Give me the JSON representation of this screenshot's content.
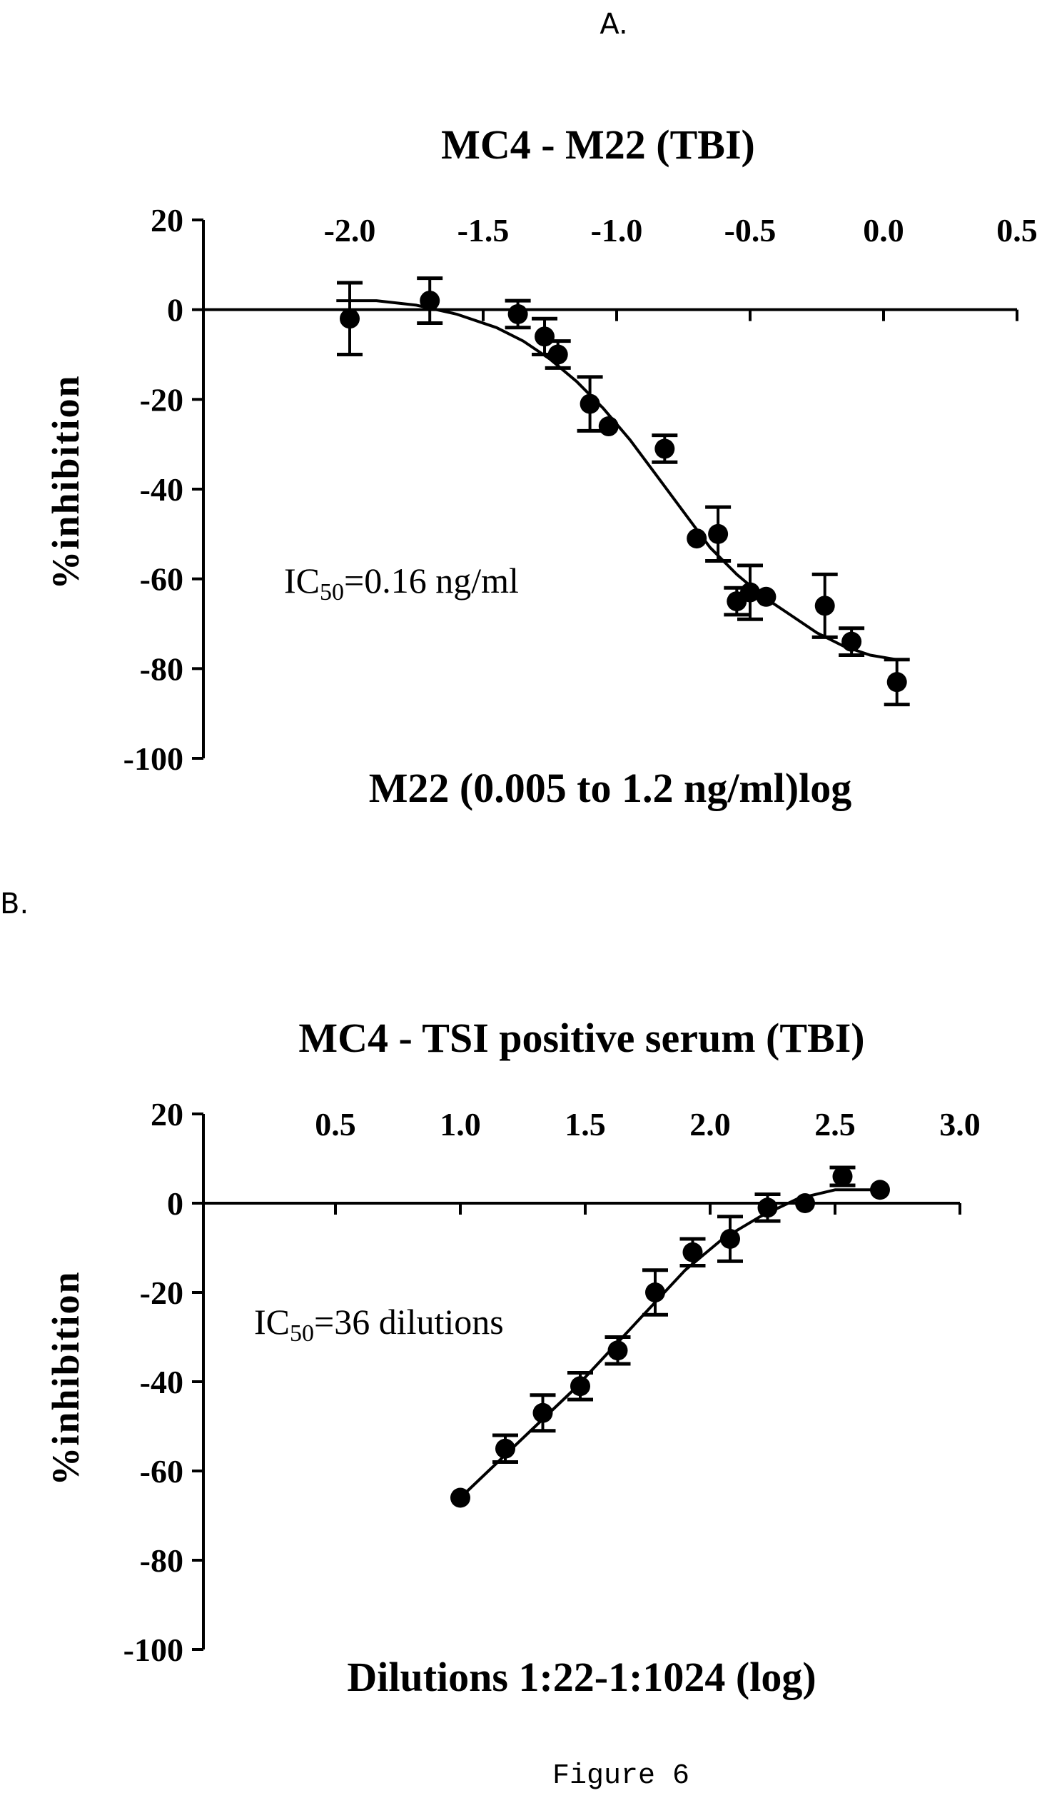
{
  "figure": {
    "panel_a_letter": "A.",
    "panel_b_letter": "B.",
    "caption": "Figure 6"
  },
  "chart_data": [
    {
      "type": "scatter",
      "title": "MC4 - M22 (TBI)",
      "xlabel": "M22 (0.005 to 1.2 ng/ml)log",
      "ylabel": "%inhibition",
      "annotation": {
        "prefix": "IC",
        "subscript": "50",
        "suffix": "=0.16 ng/ml"
      },
      "xlim": [
        -2.3,
        0.5
      ],
      "ylim": [
        -100,
        20
      ],
      "xticks": [
        -2.0,
        -1.5,
        -1.0,
        -0.5,
        0.0,
        0.5
      ],
      "xtick_labels": [
        "-2.0",
        "-1.5",
        "-1.0",
        "-0.5",
        "0.0",
        "0.5"
      ],
      "yticks": [
        20,
        0,
        -20,
        -40,
        -60,
        -80,
        -100
      ],
      "ytick_labels": [
        "20",
        "0",
        "-20",
        "-40",
        "-60",
        "-80",
        "-100"
      ],
      "x_axis_position": "top",
      "grid": false,
      "series": [
        {
          "x": [
            -2.0,
            -1.7,
            -1.37,
            -1.27,
            -1.22,
            -1.1,
            -1.03,
            -0.82,
            -0.7,
            -0.62,
            -0.55,
            -0.5,
            -0.44,
            -0.22,
            -0.12,
            0.05
          ],
          "y": [
            -2,
            2,
            -1,
            -6,
            -10,
            -21,
            -26,
            -31,
            -51,
            -50,
            -65,
            -63,
            -64,
            -66,
            -74,
            -83
          ],
          "err": [
            8,
            5,
            3,
            4,
            3,
            6,
            0,
            3,
            0,
            6,
            3,
            6,
            0,
            7,
            3,
            5
          ]
        }
      ],
      "fit": {
        "x": [
          -2.05,
          -1.9,
          -1.75,
          -1.6,
          -1.45,
          -1.35,
          -1.25,
          -1.15,
          -1.05,
          -0.95,
          -0.85,
          -0.75,
          -0.65,
          -0.55,
          -0.45,
          -0.35,
          -0.25,
          -0.15,
          -0.05,
          0.05
        ],
        "y": [
          2,
          2,
          1,
          -1,
          -4,
          -7,
          -11,
          -16,
          -22,
          -29,
          -37,
          -45,
          -53,
          -59,
          -64,
          -68,
          -72,
          -75,
          -77,
          -78
        ]
      }
    },
    {
      "type": "scatter",
      "title": "MC4 - TSI positive serum (TBI)",
      "xlabel": "Dilutions 1:22-1:1024 (log)",
      "ylabel": "%inhibition",
      "annotation": {
        "prefix": "IC",
        "subscript": "50",
        "suffix": "=36 dilutions"
      },
      "xlim": [
        0.0,
        3.0
      ],
      "ylim": [
        -100,
        20
      ],
      "xticks": [
        0.5,
        1.0,
        1.5,
        2.0,
        2.5,
        3.0
      ],
      "xtick_labels": [
        "0.5",
        "1.0",
        "1.5",
        "2.0",
        "2.5",
        "3.0"
      ],
      "yticks": [
        20,
        0,
        -20,
        -40,
        -60,
        -80,
        -100
      ],
      "ytick_labels": [
        "20",
        "0",
        "-20",
        "-40",
        "-60",
        "-80",
        "-100"
      ],
      "x_axis_position": "top",
      "grid": false,
      "series": [
        {
          "x": [
            1.0,
            1.18,
            1.33,
            1.48,
            1.63,
            1.78,
            1.93,
            2.08,
            2.23,
            2.38,
            2.53,
            2.68
          ],
          "y": [
            -66,
            -55,
            -47,
            -41,
            -33,
            -20,
            -11,
            -8,
            -1,
            0,
            6,
            3
          ],
          "err": [
            0,
            3,
            4,
            3,
            3,
            5,
            3,
            5,
            3,
            0,
            2,
            0
          ]
        }
      ],
      "fit": {
        "x": [
          1.0,
          1.15,
          1.3,
          1.45,
          1.6,
          1.75,
          1.9,
          2.05,
          2.2,
          2.35,
          2.5,
          2.7
        ],
        "y": [
          -66,
          -58,
          -50,
          -42,
          -33,
          -24,
          -15,
          -8,
          -3,
          1,
          3,
          3
        ]
      }
    }
  ]
}
